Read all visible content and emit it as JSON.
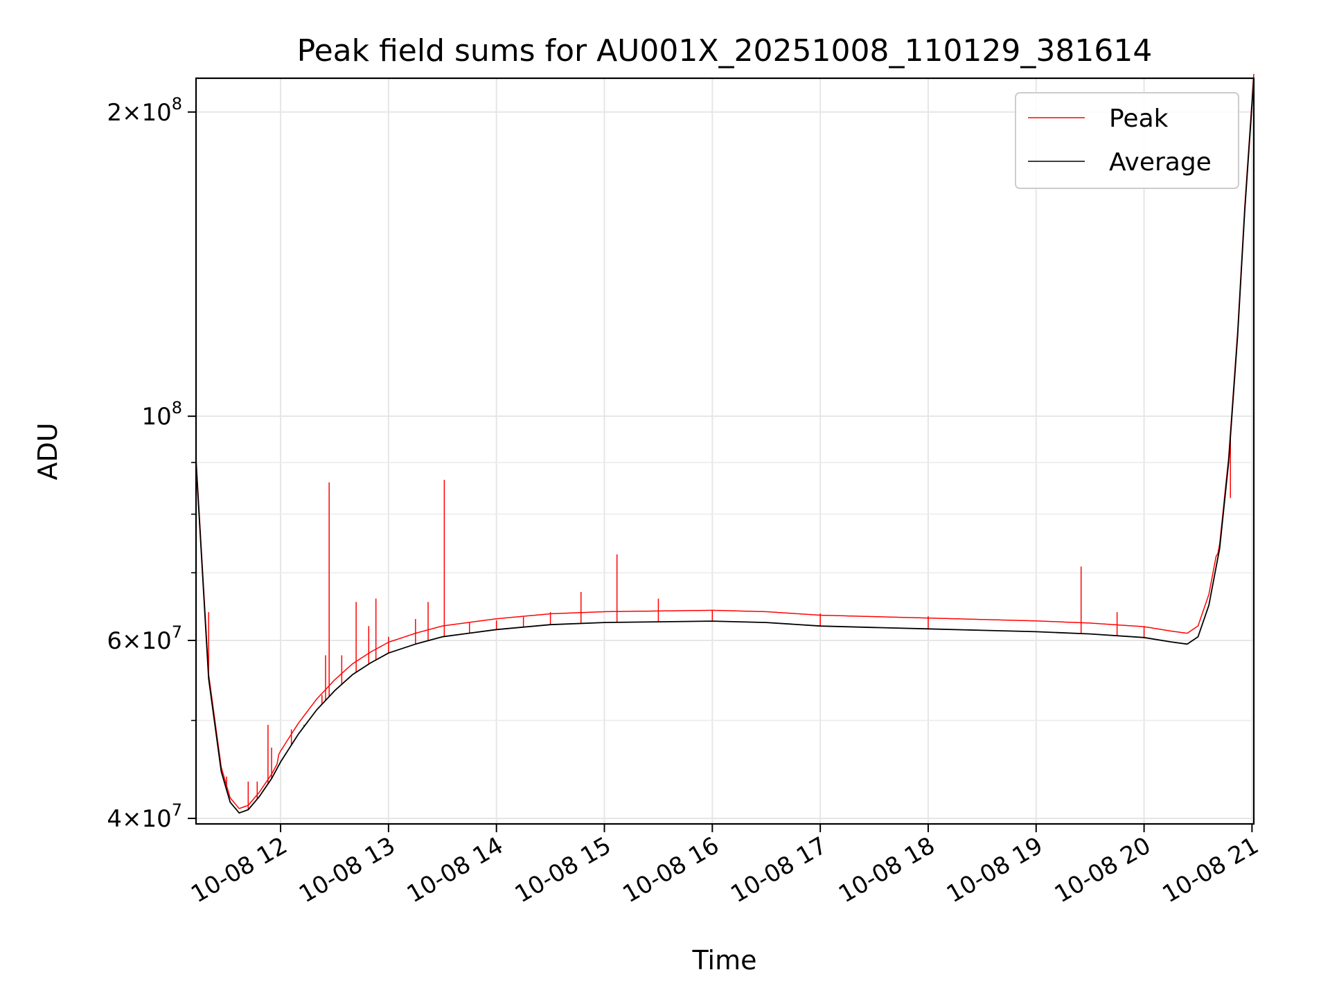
{
  "chart_data": {
    "type": "line",
    "title": "Peak field sums for AU001X_20251008_110129_381614",
    "xlabel": "Time",
    "ylabel": "ADU",
    "y_scale": "log",
    "ylim": [
      39500000,
      216000000
    ],
    "xlim": [
      "2025-10-08 11:13",
      "2025-10-08 21:01"
    ],
    "x_ticks": [
      {
        "time": "2025-10-08 12:00",
        "label": "10-08 12"
      },
      {
        "time": "2025-10-08 13:00",
        "label": "10-08 13"
      },
      {
        "time": "2025-10-08 14:00",
        "label": "10-08 14"
      },
      {
        "time": "2025-10-08 15:00",
        "label": "10-08 15"
      },
      {
        "time": "2025-10-08 16:00",
        "label": "10-08 16"
      },
      {
        "time": "2025-10-08 17:00",
        "label": "10-08 17"
      },
      {
        "time": "2025-10-08 18:00",
        "label": "10-08 18"
      },
      {
        "time": "2025-10-08 19:00",
        "label": "10-08 19"
      },
      {
        "time": "2025-10-08 20:00",
        "label": "10-08 20"
      },
      {
        "time": "2025-10-08 21:00",
        "label": "10-08 21"
      }
    ],
    "y_major_ticks": [
      {
        "value": 40000000,
        "mantissa": "4",
        "exponent": "7"
      },
      {
        "value": 60000000,
        "mantissa": "6",
        "exponent": "7"
      },
      {
        "value": 100000000,
        "mantissa": "",
        "exponent": "8"
      },
      {
        "value": 200000000,
        "mantissa": "2",
        "exponent": "8"
      }
    ],
    "y_minor_ticks": [
      50000000,
      70000000,
      80000000,
      90000000
    ],
    "grid": true,
    "legend_position": "top-right",
    "series": [
      {
        "name": "Average",
        "color": "#000000",
        "points": [
          [
            "2025-10-08 11:13",
            90000000
          ],
          [
            "2025-10-08 11:20",
            55000000
          ],
          [
            "2025-10-08 11:27",
            44500000
          ],
          [
            "2025-10-08 11:32",
            41500000
          ],
          [
            "2025-10-08 11:37",
            40500000
          ],
          [
            "2025-10-08 11:42",
            40800000
          ],
          [
            "2025-10-08 11:48",
            42000000
          ],
          [
            "2025-10-08 11:55",
            43800000
          ],
          [
            "2025-10-08 12:00",
            45500000
          ],
          [
            "2025-10-08 12:10",
            48500000
          ],
          [
            "2025-10-08 12:20",
            51200000
          ],
          [
            "2025-10-08 12:30",
            53500000
          ],
          [
            "2025-10-08 12:40",
            55500000
          ],
          [
            "2025-10-08 12:50",
            57000000
          ],
          [
            "2025-10-08 13:00",
            58300000
          ],
          [
            "2025-10-08 13:15",
            59500000
          ],
          [
            "2025-10-08 13:30",
            60500000
          ],
          [
            "2025-10-08 13:45",
            61000000
          ],
          [
            "2025-10-08 14:00",
            61500000
          ],
          [
            "2025-10-08 14:30",
            62200000
          ],
          [
            "2025-10-08 15:00",
            62500000
          ],
          [
            "2025-10-08 15:30",
            62600000
          ],
          [
            "2025-10-08 16:00",
            62700000
          ],
          [
            "2025-10-08 16:30",
            62500000
          ],
          [
            "2025-10-08 17:00",
            62000000
          ],
          [
            "2025-10-08 17:30",
            61800000
          ],
          [
            "2025-10-08 18:00",
            61600000
          ],
          [
            "2025-10-08 18:30",
            61400000
          ],
          [
            "2025-10-08 19:00",
            61200000
          ],
          [
            "2025-10-08 19:30",
            60900000
          ],
          [
            "2025-10-08 20:00",
            60400000
          ],
          [
            "2025-10-08 20:15",
            59800000
          ],
          [
            "2025-10-08 20:24",
            59500000
          ],
          [
            "2025-10-08 20:30",
            60500000
          ],
          [
            "2025-10-08 20:36",
            65000000
          ],
          [
            "2025-10-08 20:42",
            74000000
          ],
          [
            "2025-10-08 20:47",
            90000000
          ],
          [
            "2025-10-08 20:52",
            120000000
          ],
          [
            "2025-10-08 20:56",
            160000000
          ],
          [
            "2025-10-08 21:01",
            216000000
          ]
        ]
      },
      {
        "name": "Peak",
        "color": "#ff0000",
        "spikes": [
          [
            "2025-10-08 11:20",
            64000000
          ],
          [
            "2025-10-08 11:30",
            44000000
          ],
          [
            "2025-10-08 11:42",
            43500000
          ],
          [
            "2025-10-08 11:47",
            43500000
          ],
          [
            "2025-10-08 11:53",
            49500000
          ],
          [
            "2025-10-08 11:55",
            47000000
          ],
          [
            "2025-10-08 12:06",
            49000000
          ],
          [
            "2025-10-08 12:13",
            49500000
          ],
          [
            "2025-10-08 12:23",
            53000000
          ],
          [
            "2025-10-08 12:25",
            58000000
          ],
          [
            "2025-10-08 12:27",
            86000000
          ],
          [
            "2025-10-08 12:34",
            58000000
          ],
          [
            "2025-10-08 12:42",
            65500000
          ],
          [
            "2025-10-08 12:49",
            62000000
          ],
          [
            "2025-10-08 12:53",
            66000000
          ],
          [
            "2025-10-08 13:00",
            60500000
          ],
          [
            "2025-10-08 13:15",
            63000000
          ],
          [
            "2025-10-08 13:22",
            65500000
          ],
          [
            "2025-10-08 13:31",
            86500000
          ],
          [
            "2025-10-08 13:45",
            62500000
          ],
          [
            "2025-10-08 14:00",
            62800000
          ],
          [
            "2025-10-08 14:15",
            63300000
          ],
          [
            "2025-10-08 14:30",
            64000000
          ],
          [
            "2025-10-08 14:47",
            67000000
          ],
          [
            "2025-10-08 15:07",
            73000000
          ],
          [
            "2025-10-08 15:30",
            66000000
          ],
          [
            "2025-10-08 16:00",
            64200000
          ],
          [
            "2025-10-08 17:00",
            63800000
          ],
          [
            "2025-10-08 18:00",
            63400000
          ],
          [
            "2025-10-08 19:25",
            71000000
          ],
          [
            "2025-10-08 19:45",
            64000000
          ],
          [
            "2025-10-08 20:00",
            62000000
          ],
          [
            "2025-10-08 20:48",
            83000000
          ]
        ]
      }
    ]
  }
}
